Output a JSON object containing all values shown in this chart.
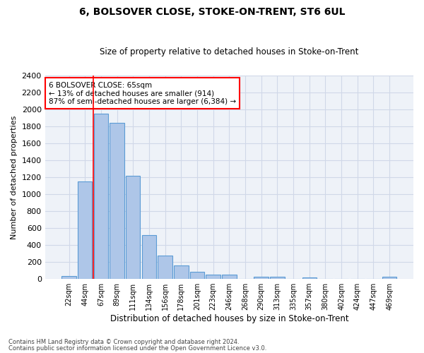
{
  "title": "6, BOLSOVER CLOSE, STOKE-ON-TRENT, ST6 6UL",
  "subtitle": "Size of property relative to detached houses in Stoke-on-Trent",
  "xlabel": "Distribution of detached houses by size in Stoke-on-Trent",
  "ylabel": "Number of detached properties",
  "categories": [
    "22sqm",
    "44sqm",
    "67sqm",
    "89sqm",
    "111sqm",
    "134sqm",
    "156sqm",
    "178sqm",
    "201sqm",
    "223sqm",
    "246sqm",
    "268sqm",
    "290sqm",
    "313sqm",
    "335sqm",
    "357sqm",
    "380sqm",
    "402sqm",
    "424sqm",
    "447sqm",
    "469sqm"
  ],
  "values": [
    30,
    1150,
    1950,
    1840,
    1215,
    515,
    270,
    155,
    80,
    50,
    45,
    0,
    25,
    20,
    0,
    15,
    0,
    0,
    0,
    0,
    20
  ],
  "bar_color": "#aec6e8",
  "bar_edge_color": "#5b9bd5",
  "grid_color": "#d0d8e8",
  "bg_color": "#eef2f8",
  "annotation_box_text": "6 BOLSOVER CLOSE: 65sqm\n← 13% of detached houses are smaller (914)\n87% of semi-detached houses are larger (6,384) →",
  "red_line_x": 1.5,
  "ylim": [
    0,
    2400
  ],
  "yticks": [
    0,
    200,
    400,
    600,
    800,
    1000,
    1200,
    1400,
    1600,
    1800,
    2000,
    2200,
    2400
  ],
  "footnote1": "Contains HM Land Registry data © Crown copyright and database right 2024.",
  "footnote2": "Contains public sector information licensed under the Open Government Licence v3.0."
}
